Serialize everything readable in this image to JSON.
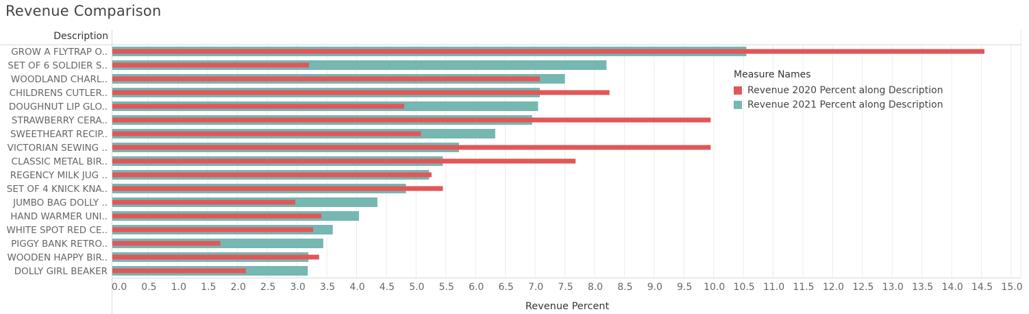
{
  "chart_data": {
    "type": "bar",
    "orientation": "horizontal",
    "title": "Revenue Comparison",
    "row_header": "Description",
    "xlabel": "Revenue Percent",
    "xlim": [
      0,
      15.25
    ],
    "xticks": [
      "0.0",
      "0.5",
      "1.0",
      "1.5",
      "2.0",
      "2.5",
      "3.0",
      "3.5",
      "4.0",
      "4.5",
      "5.0",
      "5.5",
      "6.0",
      "6.5",
      "7.0",
      "7.5",
      "8.0",
      "8.5",
      "9.0",
      "9.5",
      "10.0",
      "10.5",
      "11.0",
      "11.5",
      "12.0",
      "12.5",
      "13.0",
      "13.5",
      "14.0",
      "14.5",
      "15.0"
    ],
    "grid": true,
    "legend_position": "top-right",
    "legend_title": "Measure Names",
    "categories": [
      "GROW A FLYTRAP O..",
      "SET OF 6 SOLDIER S..",
      "WOODLAND CHARL..",
      "CHILDRENS CUTLER..",
      "DOUGHNUT LIP GLO..",
      "STRAWBERRY CERA..",
      "SWEETHEART RECIP..",
      "VICTORIAN SEWING ..",
      "CLASSIC METAL BIR..",
      "REGENCY MILK JUG ..",
      "SET OF 4 KNICK KNA..",
      "JUMBO BAG DOLLY ..",
      "HAND WARMER UNI..",
      "WHITE SPOT RED CE..",
      "PIGGY BANK RETRO..",
      "WOODEN HAPPY BIR..",
      "DOLLY GIRL BEAKER"
    ],
    "series": [
      {
        "name": "Revenue 2021 Percent along Description",
        "color": "#76b7b2",
        "values": [
          10.55,
          8.2,
          7.5,
          7.08,
          7.05,
          6.95,
          6.33,
          5.72,
          5.45,
          5.22,
          4.83,
          4.35,
          4.04,
          3.6,
          3.44,
          3.19,
          3.18
        ]
      },
      {
        "name": "Revenue 2020 Percent along Description",
        "color": "#e15759",
        "values": [
          14.55,
          3.2,
          7.08,
          8.25,
          4.8,
          9.95,
          5.08,
          9.95,
          7.68,
          5.26,
          5.45,
          2.97,
          3.41,
          3.27,
          1.71,
          3.37,
          2.14
        ]
      }
    ],
    "legend_entries": [
      "Revenue 2020 Percent along Description",
      "Revenue 2021 Percent along Description"
    ]
  }
}
